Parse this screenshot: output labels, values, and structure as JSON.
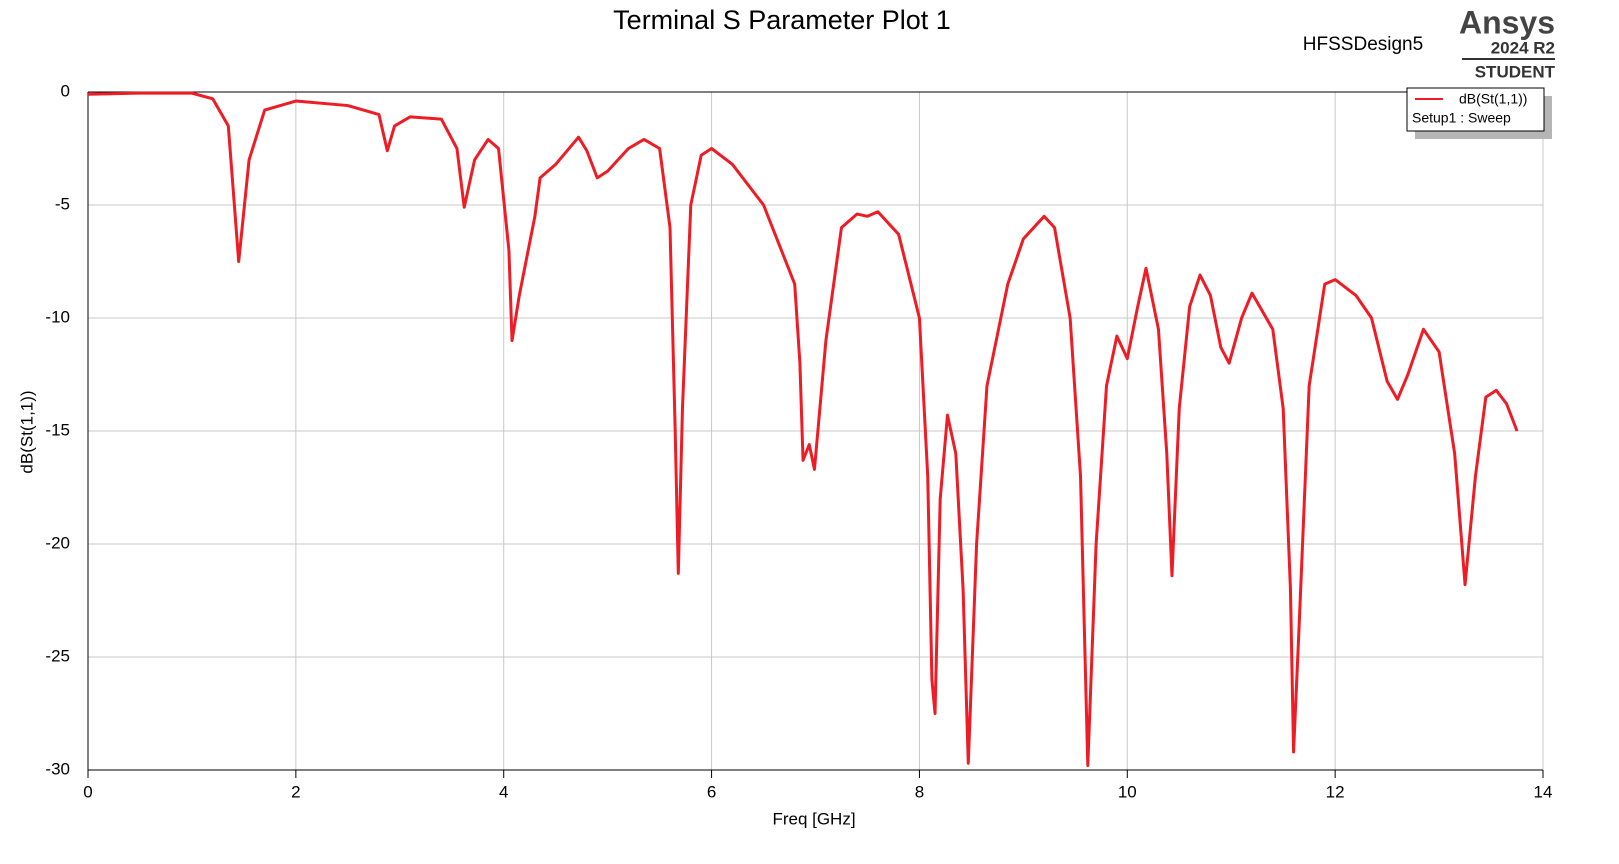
{
  "chart_data": {
    "type": "line",
    "title": "Terminal S Parameter Plot 1",
    "design": "HFSSDesign5",
    "brand": "Ansys",
    "version": "2024 R2",
    "edition": "STUDENT",
    "xlabel": "Freq [GHz]",
    "ylabel": "dB(St(1,1))",
    "legend_note": "Setup1 : Sweep",
    "legend": "upper right",
    "grid": true,
    "xlim": [
      0,
      14
    ],
    "xticks": [
      0,
      2,
      4,
      6,
      8,
      10,
      12,
      14
    ],
    "ylim": [
      -30,
      0
    ],
    "yticks": [
      0,
      -5,
      -10,
      -15,
      -20,
      -25,
      -30
    ],
    "x": [
      0,
      0.5,
      1.0,
      1.2,
      1.35,
      1.45,
      1.55,
      1.7,
      2.0,
      2.5,
      2.8,
      2.88,
      2.95,
      3.1,
      3.4,
      3.55,
      3.62,
      3.72,
      3.85,
      3.95,
      4.05,
      4.08,
      4.15,
      4.3,
      4.35,
      4.5,
      4.72,
      4.8,
      4.9,
      5.0,
      5.2,
      5.35,
      5.5,
      5.6,
      5.65,
      5.68,
      5.72,
      5.8,
      5.9,
      6.0,
      6.2,
      6.5,
      6.8,
      6.85,
      6.88,
      6.94,
      6.99,
      7.1,
      7.25,
      7.4,
      7.5,
      7.6,
      7.8,
      8.0,
      8.08,
      8.12,
      8.15,
      8.2,
      8.27,
      8.35,
      8.42,
      8.47,
      8.55,
      8.65,
      8.85,
      9.0,
      9.2,
      9.3,
      9.45,
      9.55,
      9.62,
      9.7,
      9.8,
      9.9,
      10.0,
      10.1,
      10.18,
      10.3,
      10.38,
      10.43,
      10.5,
      10.6,
      10.7,
      10.8,
      10.9,
      10.98,
      11.1,
      11.2,
      11.4,
      11.5,
      11.57,
      11.6,
      11.65,
      11.75,
      11.9,
      12.0,
      12.2,
      12.35,
      12.5,
      12.6,
      12.7,
      12.85,
      13.0,
      13.15,
      13.25,
      13.35,
      13.45,
      13.55,
      13.65,
      13.75
    ],
    "series": [
      {
        "name": "dB(St(1,1))",
        "color": "#ee1c25",
        "values": [
          -0.1,
          -0.05,
          -0.05,
          -0.3,
          -1.5,
          -7.5,
          -3,
          -0.8,
          -0.4,
          -0.6,
          -1.0,
          -2.6,
          -1.5,
          -1.1,
          -1.2,
          -2.5,
          -5.1,
          -3,
          -2.1,
          -2.5,
          -7,
          -11,
          -9,
          -5.5,
          -3.8,
          -3.2,
          -2.0,
          -2.6,
          -3.8,
          -3.5,
          -2.5,
          -2.1,
          -2.5,
          -6,
          -15,
          -21.3,
          -14,
          -5,
          -2.8,
          -2.5,
          -3.2,
          -5,
          -8.5,
          -12,
          -16.3,
          -15.6,
          -16.7,
          -11,
          -6,
          -5.4,
          -5.5,
          -5.3,
          -6.3,
          -10,
          -17,
          -26,
          -27.5,
          -18,
          -14.3,
          -16,
          -22,
          -29.7,
          -20,
          -13,
          -8.5,
          -6.5,
          -5.5,
          -6,
          -10,
          -17,
          -29.8,
          -20,
          -13,
          -10.8,
          -11.8,
          -9.5,
          -7.8,
          -10.5,
          -16,
          -21.4,
          -14,
          -9.5,
          -8.1,
          -9,
          -11.3,
          -12,
          -10,
          -8.9,
          -10.5,
          -14,
          -22,
          -29.2,
          -24,
          -13,
          -8.5,
          -8.3,
          -9,
          -10,
          -12.8,
          -13.6,
          -12.5,
          -10.5,
          -11.5,
          -16,
          -21.8,
          -17,
          -13.5,
          -13.2,
          -13.8,
          -15
        ]
      }
    ]
  }
}
